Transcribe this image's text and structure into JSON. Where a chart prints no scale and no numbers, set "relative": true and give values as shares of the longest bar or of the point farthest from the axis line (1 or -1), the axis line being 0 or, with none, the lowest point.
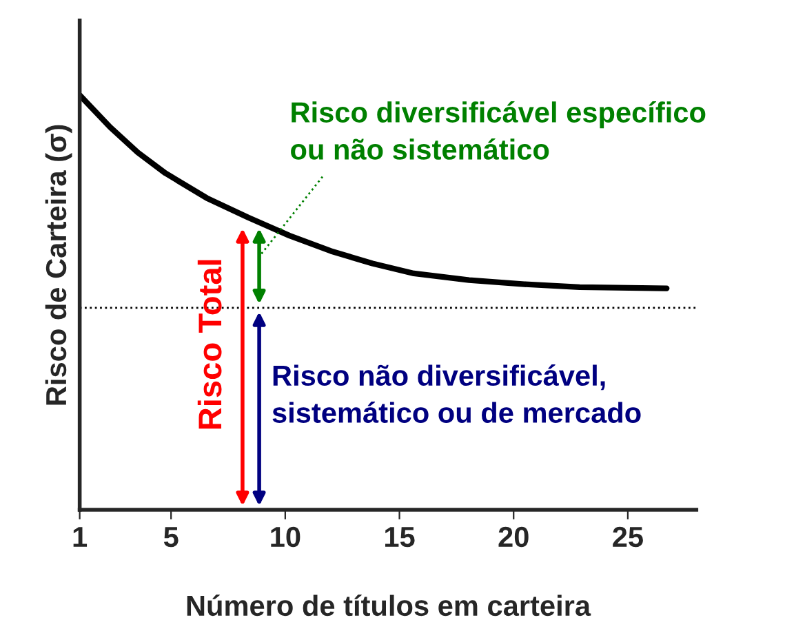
{
  "chart_data": {
    "type": "line",
    "relative": true,
    "xlabel": "Número de títulos em carteira",
    "ylabel": "Risco de Carteira (σ)",
    "xlim": [
      1,
      28
    ],
    "xticks": [
      1,
      5,
      10,
      15,
      20,
      25
    ],
    "series": [
      {
        "color": "#000000",
        "x": [
          1,
          2.33,
          3.54,
          4.75,
          6.56,
          8.38,
          10.19,
          12.0,
          13.82,
          15.63,
          18.05,
          20.47,
          22.89,
          26.7
        ],
        "values": [
          1,
          0.923,
          0.862,
          0.812,
          0.752,
          0.705,
          0.661,
          0.624,
          0.594,
          0.57,
          0.554,
          0.544,
          0.537,
          0.534
        ]
      }
    ],
    "ref_lines": [
      {
        "axis": "y",
        "value": 0.487,
        "color": "#000000",
        "line_style": "dotted"
      }
    ],
    "annotations": [
      {
        "text": "Risco Total",
        "x": 8.13,
        "y": 0.688
      },
      "Risco diversificável específico\nou não sistemático",
      {
        "text": "Risco não diversificável,\nsistemático ou de mercado",
        "x": 8.86,
        "y": 0.487
      }
    ],
    "grid": false,
    "legend": false,
    "marker": "none",
    "line_style": "solid"
  }
}
